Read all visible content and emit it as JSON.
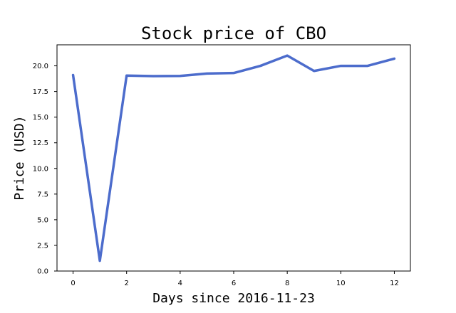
{
  "chart_data": {
    "type": "line",
    "title": "Stock price of CBO",
    "xlabel": "Days since 2016-11-23",
    "ylabel": "Price (USD)",
    "x": [
      0,
      1,
      2,
      3,
      4,
      5,
      6,
      7,
      8,
      9,
      10,
      11,
      12
    ],
    "series": [
      {
        "values": [
          19.1,
          1.0,
          19.05,
          19.0,
          19.02,
          19.25,
          19.3,
          20.0,
          21.0,
          19.5,
          20.0,
          20.0,
          20.7
        ],
        "color": "#4c6ccc"
      }
    ],
    "xlim": [
      -0.6,
      12.6
    ],
    "ylim": [
      0,
      22.05
    ],
    "xticks": [
      "0",
      "2",
      "4",
      "6",
      "8",
      "10",
      "12"
    ],
    "yticks": [
      "0.0",
      "2.5",
      "5.0",
      "7.5",
      "10.0",
      "12.5",
      "15.0",
      "17.5",
      "20.0"
    ],
    "grid": false,
    "legend": "none"
  }
}
